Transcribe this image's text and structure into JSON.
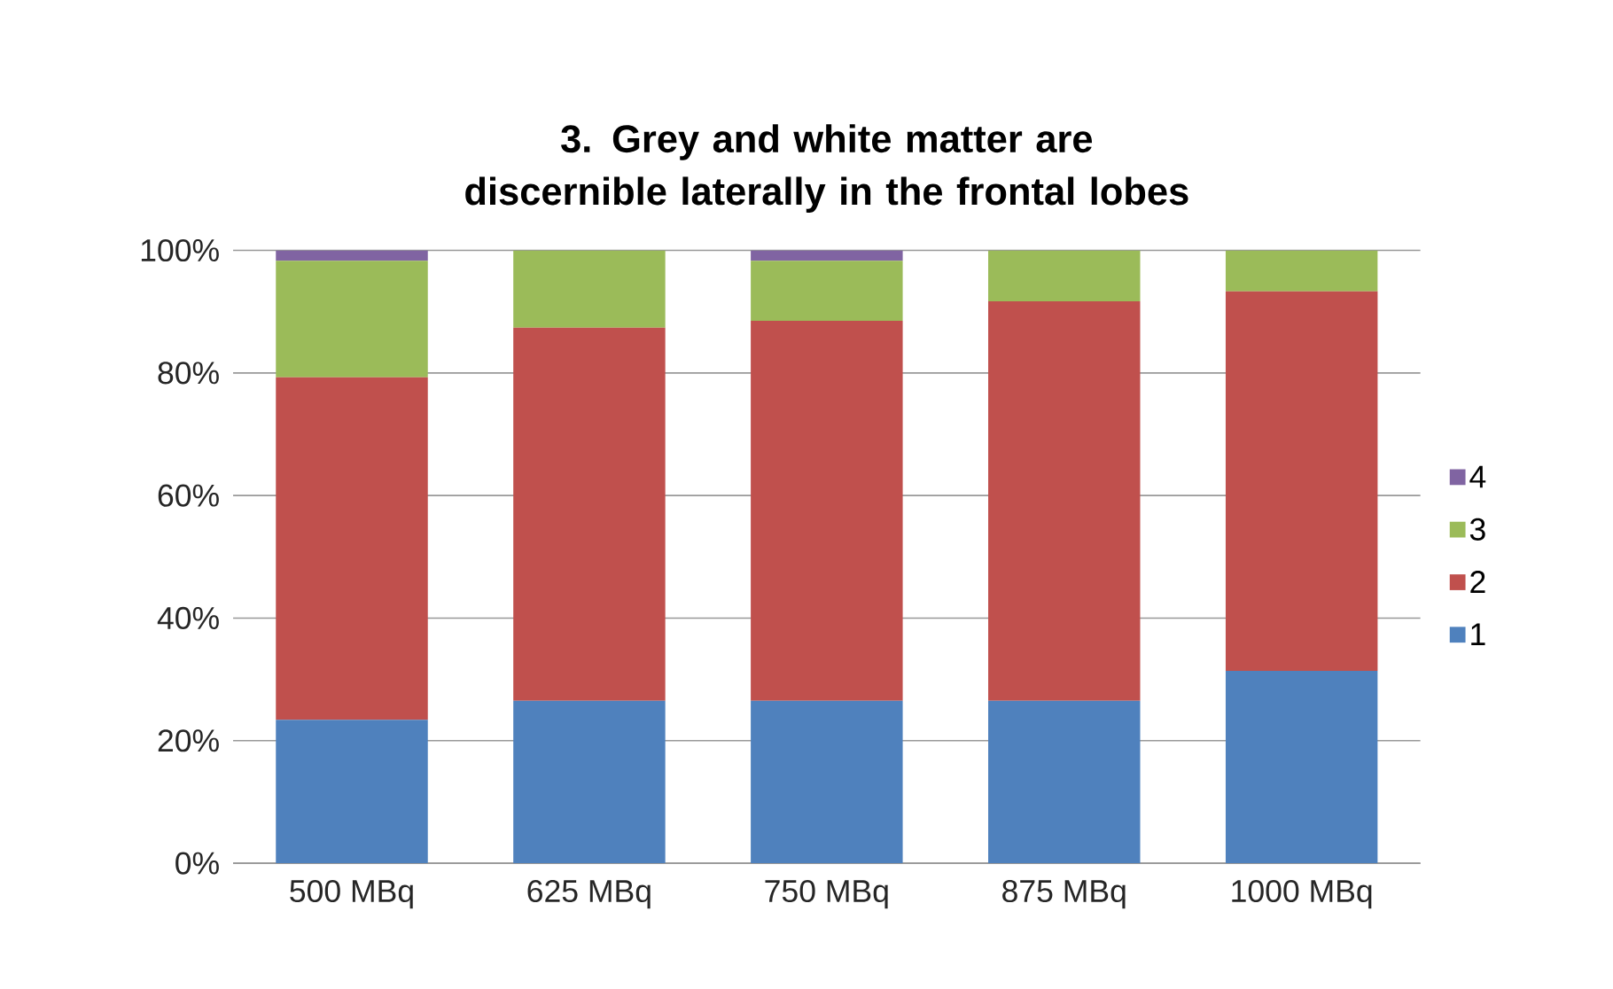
{
  "chart_data": {
    "type": "bar",
    "title": "3. Grey and white matter are discernible laterally in the frontal lobes",
    "categories": [
      "500 MBq",
      "625 MBq",
      "750 MBq",
      "875 MBq",
      "1000 MBq"
    ],
    "stacked": true,
    "series": [
      {
        "name": "1",
        "color": "#4f81bd",
        "values": [
          23.4,
          26.5,
          26.5,
          26.5,
          31.4
        ]
      },
      {
        "name": "2",
        "color": "#c0504d",
        "values": [
          55.9,
          60.9,
          62,
          65.2,
          61.9
        ]
      },
      {
        "name": "3",
        "color": "#9bbb59",
        "values": [
          19,
          12.6,
          9.8,
          8.3,
          6.7
        ]
      },
      {
        "name": "4",
        "color": "#8064a2",
        "values": [
          1.7,
          0,
          1.7,
          0,
          0
        ]
      }
    ],
    "ylim": [
      0,
      100
    ],
    "yticks": [
      {
        "value": 0,
        "label": "0%"
      },
      {
        "value": 20,
        "label": "20%"
      },
      {
        "value": 40,
        "label": "40%"
      },
      {
        "value": 60,
        "label": "60%"
      },
      {
        "value": 80,
        "label": "80%"
      },
      {
        "value": 100,
        "label": "100%"
      }
    ],
    "grid": "y",
    "legend": "right"
  }
}
